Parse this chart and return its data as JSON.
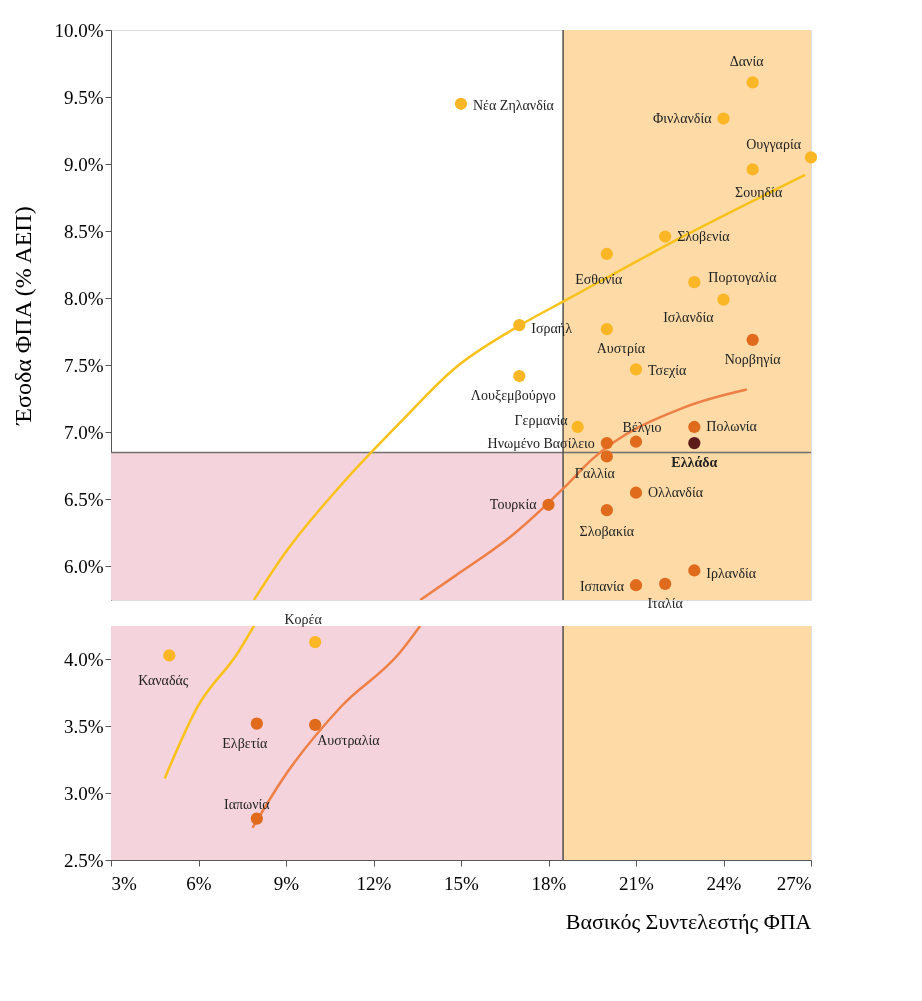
{
  "chart_data": [
    {
      "type": "scatter",
      "ylabel": "Έσοδα ΦΠΑ (% ΑΕΠ)",
      "marker": "circle",
      "tick_labels": "y",
      "xlim": [
        3,
        27
      ],
      "ylim": [
        5.75,
        10
      ],
      "yticks": [
        {
          "value": 6,
          "label": "6.0%"
        },
        {
          "value": 6.5,
          "label": "6.5%"
        },
        {
          "value": 7,
          "label": "7.0%"
        },
        {
          "value": 7.5,
          "label": "7.5%"
        },
        {
          "value": 8,
          "label": "8.0%"
        },
        {
          "value": 8.5,
          "label": "8.5%"
        },
        {
          "value": 9,
          "label": "9.0%"
        },
        {
          "value": 9.5,
          "label": "9.5%"
        },
        {
          "value": 10,
          "label": "10.0%"
        }
      ],
      "bands": [
        {
          "axis": "y",
          "from": 5.75,
          "to": 6.85,
          "color": "#f5d3dc"
        },
        {
          "axis": "x",
          "from": 18.5,
          "to": 27,
          "color": "#fddaa6"
        }
      ],
      "ref_lines": [
        {
          "axis": "y",
          "value": 6.85,
          "color": "#707070"
        },
        {
          "axis": "x",
          "value": 18.5,
          "color": "#505050"
        }
      ],
      "series": [
        {
          "type": "line",
          "marker": "none",
          "color": "#f9c21a",
          "x": [
            7.9,
            8.9,
            10.9,
            12.9,
            14.8,
            16.8,
            18.8,
            22.7,
            26.8
          ],
          "values": [
            5.75,
            6.08,
            6.61,
            7.07,
            7.48,
            7.77,
            8.01,
            8.47,
            8.92
          ]
        },
        {
          "type": "line",
          "marker": "none",
          "color": "#ee7f45",
          "x": [
            13.6,
            14.8,
            16.8,
            18.5,
            19.5,
            22.7,
            24.8
          ],
          "values": [
            5.75,
            5.93,
            6.24,
            6.58,
            6.8,
            7.19,
            7.32
          ]
        },
        {
          "color": "#fbb626",
          "x": [
            25,
            15,
            24,
            27,
            25,
            22,
            20,
            23,
            24,
            17,
            20,
            21,
            17,
            19
          ],
          "values": [
            9.61,
            9.45,
            9.34,
            9.05,
            8.96,
            8.46,
            8.33,
            8.12,
            7.99,
            7.8,
            7.77,
            7.47,
            7.42,
            7.04
          ]
        },
        {
          "color": "#e06b1d",
          "x": [
            25,
            23,
            21,
            20,
            20,
            21,
            18,
            20,
            23,
            22,
            21
          ],
          "values": [
            7.69,
            7.04,
            6.93,
            6.92,
            6.82,
            6.55,
            6.46,
            6.42,
            5.97,
            5.87,
            5.86
          ]
        },
        {
          "color": "#5c1a1b",
          "x": [
            23
          ],
          "values": [
            6.92
          ]
        }
      ],
      "annotations": [
        {
          "text": "Δανία",
          "x": 25,
          "y": 9.61
        },
        {
          "text": "Νέα Ζηλανδία",
          "x": 15,
          "y": 9.45
        },
        {
          "text": "Φινλανδία",
          "x": 24,
          "y": 9.34
        },
        {
          "text": "Ουγγαρία",
          "x": 27,
          "y": 9.05
        },
        {
          "text": "Σουηδία",
          "x": 25,
          "y": 8.96
        },
        {
          "text": "Σλοβενία",
          "x": 22,
          "y": 8.46
        },
        {
          "text": "Εσθονία",
          "x": 20,
          "y": 8.33
        },
        {
          "text": "Πορτογαλία",
          "x": 23,
          "y": 8.12
        },
        {
          "text": "Ισλανδία",
          "x": 24,
          "y": 7.99
        },
        {
          "text": "Ισραήλ",
          "x": 17,
          "y": 7.8
        },
        {
          "text": "Αυστρία",
          "x": 20,
          "y": 7.77
        },
        {
          "text": "Τσεχία",
          "x": 21,
          "y": 7.47
        },
        {
          "text": "Λουξεμβούργο",
          "x": 17,
          "y": 7.42
        },
        {
          "text": "Γερμανία",
          "x": 19,
          "y": 7.04
        },
        {
          "text": "Νορβηγία",
          "x": 25,
          "y": 7.69
        },
        {
          "text": "Πολωνία",
          "x": 23,
          "y": 7.04
        },
        {
          "text": "Βέλγιο",
          "x": 21,
          "y": 6.93
        },
        {
          "text": "Ηνωμένο Βασίλειο",
          "x": 20,
          "y": 6.92
        },
        {
          "text": "Γαλλία",
          "x": 20,
          "y": 6.82
        },
        {
          "text": "Ολλανδία",
          "x": 21,
          "y": 6.55
        },
        {
          "text": "Τουρκία",
          "x": 18,
          "y": 6.46
        },
        {
          "text": "Σλοβακία",
          "x": 20,
          "y": 6.42
        },
        {
          "text": "Ιρλανδία",
          "x": 23,
          "y": 5.97
        },
        {
          "text": "Ιταλία",
          "x": 22,
          "y": 5.87
        },
        {
          "text": "Ισπανία",
          "x": 21,
          "y": 5.86
        },
        {
          "text": "Ελλάδα",
          "x": 23,
          "y": 6.92
        }
      ]
    },
    {
      "type": "scatter",
      "xlabel": "Βασικός Συντελεστής ΦΠΑ",
      "marker": "circle",
      "xlim": [
        3,
        27
      ],
      "xticks": [
        {
          "value": 3,
          "label": "3%"
        },
        {
          "value": 6,
          "label": "6%"
        },
        {
          "value": 9,
          "label": "9%"
        },
        {
          "value": 12,
          "label": "12%"
        },
        {
          "value": 15,
          "label": "15%"
        },
        {
          "value": 18,
          "label": "18%"
        },
        {
          "value": 21,
          "label": "21%"
        },
        {
          "value": 24,
          "label": "24%"
        },
        {
          "value": 27,
          "label": "27%"
        }
      ],
      "ylim": [
        2.5,
        4.25
      ],
      "yticks": [
        {
          "value": 2.5,
          "label": "2.5%"
        },
        {
          "value": 3,
          "label": "3.0%"
        },
        {
          "value": 3.5,
          "label": "3.5%"
        },
        {
          "value": 4,
          "label": "4.0%"
        }
      ],
      "bands": [
        {
          "axis": "x",
          "from": 3,
          "to": 18.5,
          "color": "#f5d3dc"
        },
        {
          "axis": "x",
          "from": 18.5,
          "to": 27,
          "color": "#fddaa6"
        }
      ],
      "ref_lines": [
        {
          "axis": "x",
          "value": 18.5,
          "color": "#505050"
        }
      ],
      "series": [
        {
          "type": "line",
          "marker": "none",
          "color": "#f9c21a",
          "x": [
            4.84,
            5.98,
            7.35,
            7.9
          ],
          "values": [
            3.11,
            3.65,
            4.05,
            4.25
          ]
        },
        {
          "type": "line",
          "marker": "none",
          "color": "#ee7f45",
          "x": [
            7.85,
            8.9,
            10.9,
            12.9,
            13.6
          ],
          "values": [
            2.74,
            3.11,
            3.65,
            4.05,
            4.25
          ]
        },
        {
          "color": "#fbb626",
          "x": [
            10,
            5
          ],
          "values": [
            4.13,
            4.03
          ]
        },
        {
          "color": "#e06b1d",
          "x": [
            8,
            10,
            8
          ],
          "values": [
            3.52,
            3.51,
            2.81
          ]
        }
      ],
      "annotations": [
        {
          "text": "Κορέα",
          "x": 10,
          "y": 4.13
        },
        {
          "text": "Καναδάς",
          "x": 5,
          "y": 4.03
        },
        {
          "text": "Ελβετία",
          "x": 8,
          "y": 3.52
        },
        {
          "text": "Αυστραλία",
          "x": 10,
          "y": 3.51
        },
        {
          "text": "Ιαπωνία",
          "x": 8,
          "y": 2.81
        }
      ]
    }
  ]
}
